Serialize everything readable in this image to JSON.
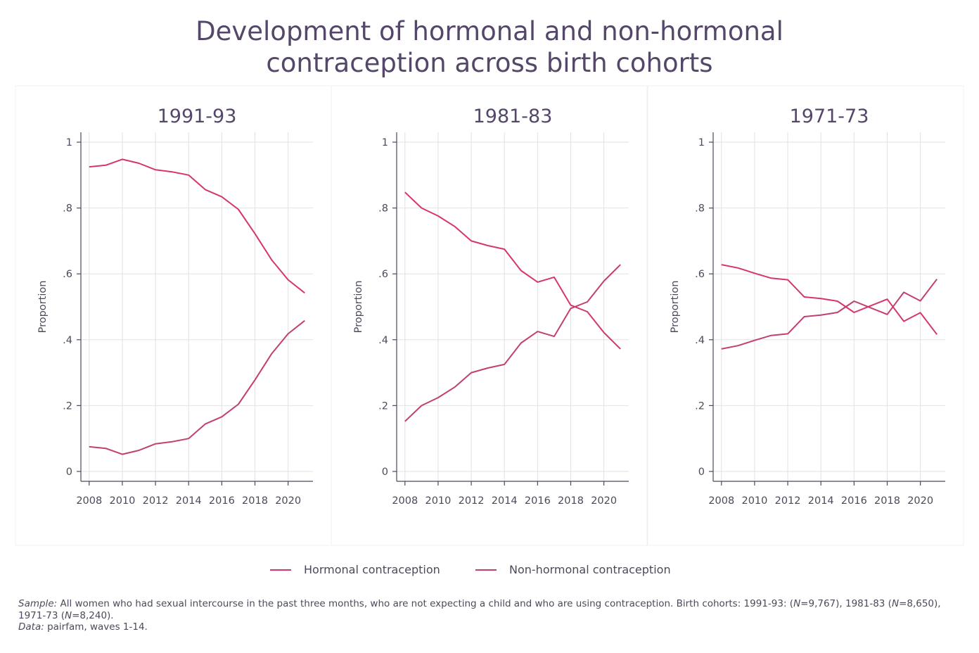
{
  "title": {
    "line1": "Development of hormonal and non-hormonal",
    "line2": "contraception across birth cohorts"
  },
  "colors": {
    "hormonal": "#d6366a",
    "non_hormonal": "#c13f72",
    "title": "#55476a",
    "grid": "#e2e2e2",
    "axis": "#4a4a5a"
  },
  "chart_data": [
    {
      "type": "line",
      "title": "1991-93",
      "ylabel": "Proportion",
      "xlabel": "",
      "xlim": [
        2007.5,
        2021.5
      ],
      "ylim": [
        -0.03,
        1.03
      ],
      "x_ticks": [
        2008,
        2010,
        2012,
        2014,
        2016,
        2018,
        2020
      ],
      "y_ticks": [
        0,
        0.2,
        0.4,
        0.6,
        0.8,
        1
      ],
      "y_tick_labels": [
        "0",
        ".2",
        ".4",
        ".6",
        ".8",
        "1"
      ],
      "grid": true,
      "x": [
        2008,
        2009,
        2010,
        2011,
        2012,
        2013,
        2014,
        2015,
        2016,
        2017,
        2018,
        2019,
        2020,
        2021
      ],
      "series": [
        {
          "name": "Hormonal contraception",
          "values": [
            0.925,
            0.93,
            0.948,
            0.936,
            0.916,
            0.91,
            0.9,
            0.856,
            0.834,
            0.796,
            0.722,
            0.643,
            0.582,
            0.542
          ]
        },
        {
          "name": "Non-hormonal contraception",
          "values": [
            0.075,
            0.07,
            0.052,
            0.064,
            0.084,
            0.09,
            0.1,
            0.144,
            0.166,
            0.204,
            0.278,
            0.357,
            0.418,
            0.458
          ]
        }
      ]
    },
    {
      "type": "line",
      "title": "1981-83",
      "ylabel": "Proportion",
      "xlabel": "",
      "xlim": [
        2007.5,
        2021.5
      ],
      "ylim": [
        -0.03,
        1.03
      ],
      "x_ticks": [
        2008,
        2010,
        2012,
        2014,
        2016,
        2018,
        2020
      ],
      "y_ticks": [
        0,
        0.2,
        0.4,
        0.6,
        0.8,
        1
      ],
      "y_tick_labels": [
        "0",
        ".2",
        ".4",
        ".6",
        ".8",
        "1"
      ],
      "grid": true,
      "x": [
        2008,
        2009,
        2010,
        2011,
        2012,
        2013,
        2014,
        2015,
        2016,
        2017,
        2018,
        2019,
        2020,
        2021
      ],
      "series": [
        {
          "name": "Hormonal contraception",
          "values": [
            0.848,
            0.8,
            0.776,
            0.744,
            0.7,
            0.686,
            0.675,
            0.61,
            0.575,
            0.59,
            0.505,
            0.485,
            0.422,
            0.372
          ]
        },
        {
          "name": "Non-hormonal contraception",
          "values": [
            0.152,
            0.2,
            0.224,
            0.256,
            0.3,
            0.314,
            0.325,
            0.39,
            0.425,
            0.41,
            0.495,
            0.515,
            0.578,
            0.628
          ]
        }
      ]
    },
    {
      "type": "line",
      "title": "1971-73",
      "ylabel": "Proportion",
      "xlabel": "",
      "xlim": [
        2007.5,
        2021.5
      ],
      "ylim": [
        -0.03,
        1.03
      ],
      "x_ticks": [
        2008,
        2010,
        2012,
        2014,
        2016,
        2018,
        2020
      ],
      "y_ticks": [
        0,
        0.2,
        0.4,
        0.6,
        0.8,
        1
      ],
      "y_tick_labels": [
        "0",
        ".2",
        ".4",
        ".6",
        ".8",
        "1"
      ],
      "grid": true,
      "x": [
        2008,
        2009,
        2010,
        2011,
        2012,
        2013,
        2014,
        2015,
        2016,
        2017,
        2018,
        2019,
        2020,
        2021
      ],
      "series": [
        {
          "name": "Hormonal contraception",
          "values": [
            0.628,
            0.618,
            0.602,
            0.587,
            0.582,
            0.53,
            0.525,
            0.517,
            0.483,
            0.503,
            0.523,
            0.456,
            0.482,
            0.416
          ]
        },
        {
          "name": "Non-hormonal contraception",
          "values": [
            0.372,
            0.382,
            0.398,
            0.413,
            0.418,
            0.47,
            0.475,
            0.483,
            0.517,
            0.497,
            0.477,
            0.544,
            0.518,
            0.584
          ]
        }
      ]
    }
  ],
  "legend": {
    "hormonal": "Hormonal contraception",
    "non_hormonal": "Non-hormonal contraception"
  },
  "note": {
    "sample_label": "Sample:",
    "sample_text_1": " All women who had sexual intercourse in the past three months, who are not expecting a child and who are using contraception. Birth cohorts: 1991-93: (",
    "n1_label": "N",
    "n1_value": "=9,767), 1981-83 (",
    "n2_label": "N",
    "n2_value": "=8,650), 1971-73 (",
    "n3_label": "N",
    "n3_value": "=8,240).",
    "data_label": "Data:",
    "data_text": " pairfam, waves 1-14."
  }
}
